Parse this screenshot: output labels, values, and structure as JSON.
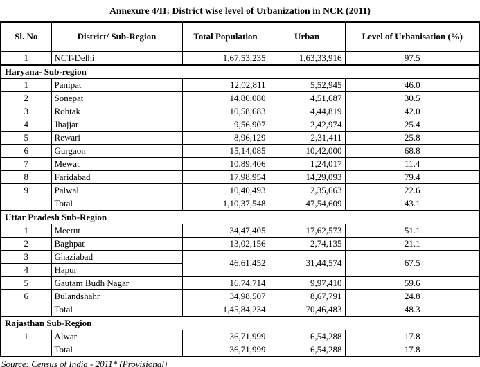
{
  "page": {
    "title": "Annexure 4/II:  District wise level of Urbanization in NCR (2011)",
    "source": "Source: Census of India - 2011* (Provisional)"
  },
  "table": {
    "columns": [
      "Sl. No",
      "District/ Sub-Region",
      "Total Population",
      "Urban",
      "Level of Urbanisation (%)"
    ],
    "rows": [
      {
        "type": "data",
        "sl": "1",
        "district": "NCT-Delhi",
        "pop": "1,67,53,235",
        "urban": "1,63,33,916",
        "level": "97.5"
      },
      {
        "type": "section",
        "label": "Haryana- Sub-region"
      },
      {
        "type": "data",
        "sl": "1",
        "district": "Panipat",
        "pop": "12,02,811",
        "urban": "5,52,945",
        "level": "46.0"
      },
      {
        "type": "data",
        "sl": "2",
        "district": "Sonepat",
        "pop": "14,80,080",
        "urban": "4,51,687",
        "level": "30.5"
      },
      {
        "type": "data",
        "sl": "3",
        "district": "Rohtak",
        "pop": "10,58,683",
        "urban": "4,44,819",
        "level": "42.0"
      },
      {
        "type": "data",
        "sl": "4",
        "district": "Jhajjar",
        "pop": "9,56,907",
        "urban": "2,42,974",
        "level": "25.4"
      },
      {
        "type": "data",
        "sl": "5",
        "district": "Rewari",
        "pop": "8,96,129",
        "urban": "2,31,411",
        "level": "25.8"
      },
      {
        "type": "data",
        "sl": "6",
        "district": "Gurgaon",
        "pop": "15,14,085",
        "urban": "10,42,000",
        "level": "68.8"
      },
      {
        "type": "data",
        "sl": "7",
        "district": "Mewat",
        "pop": "10,89,406",
        "urban": "1,24,017",
        "level": "11.4"
      },
      {
        "type": "data",
        "sl": "8",
        "district": "Faridabad",
        "pop": "17,98,954",
        "urban": "14,29,093",
        "level": "79.4"
      },
      {
        "type": "data",
        "sl": "9",
        "district": "Palwal",
        "pop": "10,40,493",
        "urban": "2,35,663",
        "level": "22.6"
      },
      {
        "type": "data",
        "sl": "",
        "district": "Total",
        "pop": "1,10,37,548",
        "urban": "47,54,609",
        "level": "43.1"
      },
      {
        "type": "section",
        "label": "Uttar Pradesh Sub-Region"
      },
      {
        "type": "data",
        "sl": "1",
        "district": "Meerut",
        "pop": "34,47,405",
        "urban": "17,62,573",
        "level": "51.1"
      },
      {
        "type": "data",
        "sl": "2",
        "district": "Baghpat",
        "pop": "13,02,156",
        "urban": "2,74,135",
        "level": "21.1"
      },
      {
        "type": "data",
        "sl": "3",
        "district": "Ghaziabad",
        "pop": "46,61,452",
        "urban": "31,44,574",
        "level": "67.5",
        "merge_down": 2
      },
      {
        "type": "continued",
        "sl": "4",
        "district": "Hapur"
      },
      {
        "type": "data",
        "sl": "5",
        "district": "Gautam Budh Nagar",
        "pop": "16,74,714",
        "urban": "9,97,410",
        "level": "59.6"
      },
      {
        "type": "data",
        "sl": "6",
        "district": "Bulandshahr",
        "pop": "34,98,507",
        "urban": "8,67,791",
        "level": "24.8"
      },
      {
        "type": "data",
        "sl": "",
        "district": "Total",
        "pop": "1,45,84,234",
        "urban": "70,46,483",
        "level": "48.3"
      },
      {
        "type": "section",
        "label": "Rajasthan Sub-Region"
      },
      {
        "type": "data",
        "sl": "1",
        "district": "Alwar",
        "pop": "36,71,999",
        "urban": "6,54,288",
        "level": "17.8"
      },
      {
        "type": "data",
        "sl": "",
        "district": "Total",
        "pop": "36,71,999",
        "urban": "6,54,288",
        "level": "17.8"
      }
    ]
  }
}
